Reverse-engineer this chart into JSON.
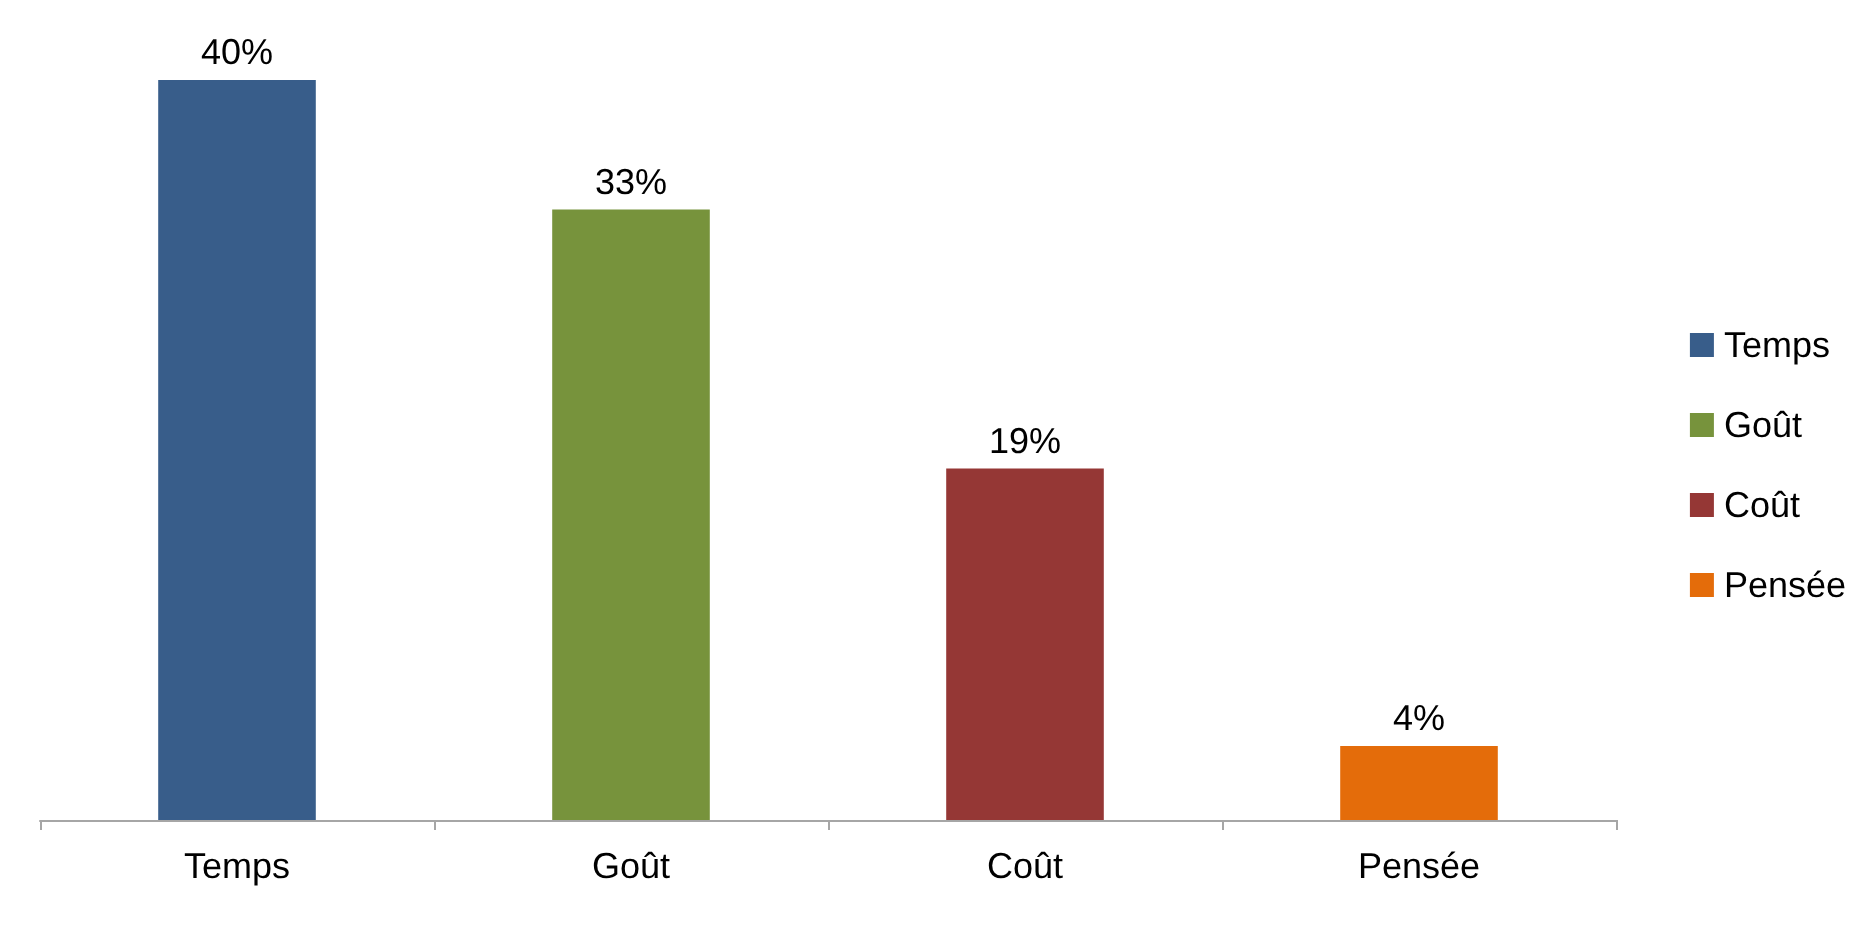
{
  "chart_data": {
    "type": "bar",
    "categories": [
      "Temps",
      "Goût",
      "Coût",
      "Pensée"
    ],
    "series": [
      {
        "name": "Temps",
        "color": "#385d8a",
        "values": [
          40,
          null,
          null,
          null
        ],
        "value_labels": [
          "40%",
          null,
          null,
          null
        ]
      },
      {
        "name": "Goût",
        "color": "#77933c",
        "values": [
          null,
          33,
          null,
          null
        ],
        "value_labels": [
          null,
          "33%",
          null,
          null
        ]
      },
      {
        "name": "Coût",
        "color": "#953735",
        "values": [
          null,
          null,
          19,
          null
        ],
        "value_labels": [
          null,
          null,
          "19%",
          null
        ]
      },
      {
        "name": "Pensée",
        "color": "#e46c0a",
        "values": [
          null,
          null,
          null,
          4
        ],
        "value_labels": [
          null,
          null,
          null,
          "4%"
        ]
      }
    ],
    "legend": "right",
    "grid": false
  }
}
